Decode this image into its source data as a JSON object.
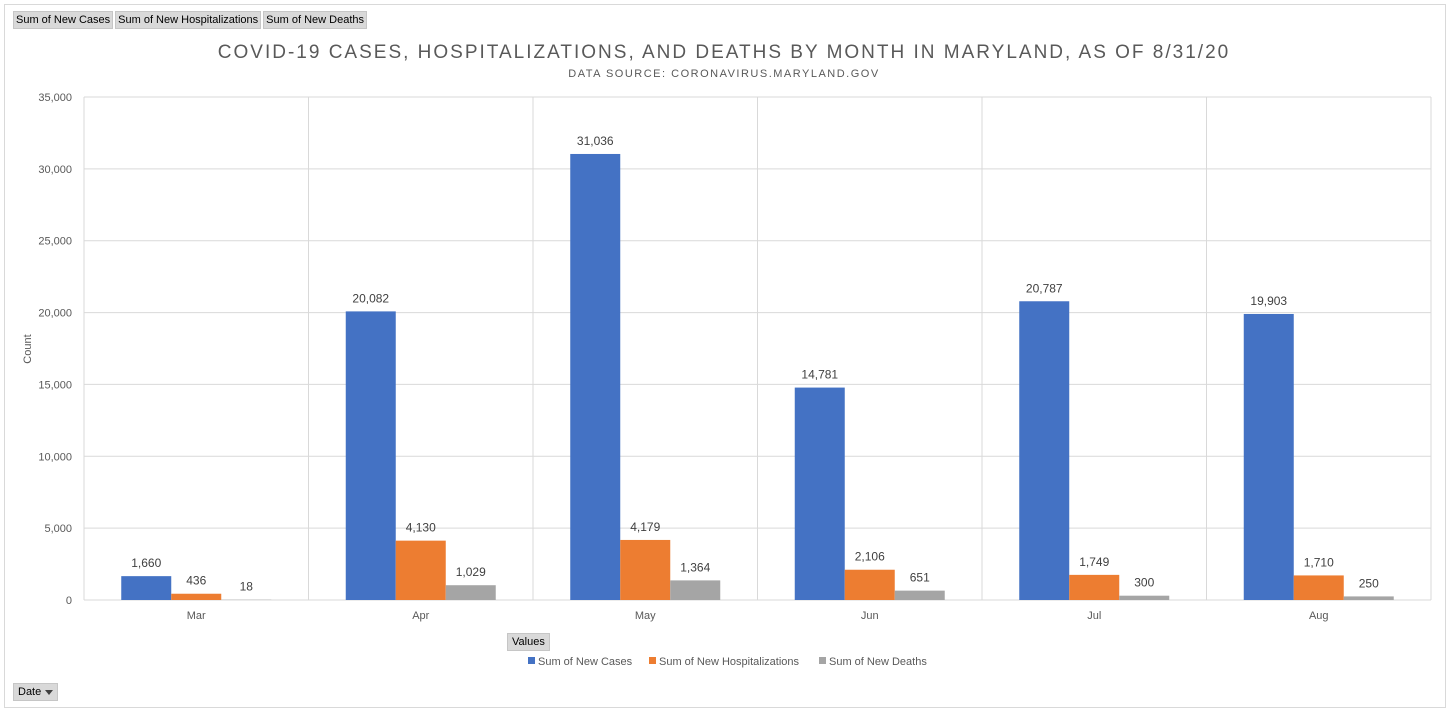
{
  "field_buttons": [
    "Sum of New Cases",
    "Sum of New Hospitalizations",
    "Sum of New Deaths"
  ],
  "values_button": "Values",
  "date_button": "Date",
  "chart_data": {
    "type": "bar",
    "title": "COVID-19 CASES, HOSPITALIZATIONS, AND DEATHS BY MONTH IN MARYLAND, AS OF 8/31/20",
    "subtitle": "DATA SOURCE: CORONAVIRUS.MARYLAND.GOV",
    "xlabel": "",
    "ylabel": "Count",
    "ylim": [
      0,
      35000
    ],
    "yticks": [
      0,
      5000,
      10000,
      15000,
      20000,
      25000,
      30000,
      35000
    ],
    "ytick_labels": [
      "0",
      "5,000",
      "10,000",
      "15,000",
      "20,000",
      "25,000",
      "30,000",
      "35,000"
    ],
    "categories": [
      "Mar",
      "Apr",
      "May",
      "Jun",
      "Jul",
      "Aug"
    ],
    "series": [
      {
        "name": "Sum of New Cases",
        "color": "#4472c4",
        "values": [
          1660,
          20082,
          31036,
          14781,
          20787,
          19903
        ],
        "labels": [
          "1,660",
          "20,082",
          "31,036",
          "14,781",
          "20,787",
          "19,903"
        ]
      },
      {
        "name": "Sum of New Hospitalizations",
        "color": "#ed7d31",
        "values": [
          436,
          4130,
          4179,
          2106,
          1749,
          1710
        ],
        "labels": [
          "436",
          "4,130",
          "4,179",
          "2,106",
          "1,749",
          "1,710"
        ]
      },
      {
        "name": "Sum of New Deaths",
        "color": "#a5a5a5",
        "values": [
          18,
          1029,
          1364,
          651,
          300,
          250
        ],
        "labels": [
          "18",
          "1,029",
          "1,364",
          "651",
          "300",
          "250"
        ]
      }
    ],
    "grid": true,
    "legend_position": "bottom"
  }
}
